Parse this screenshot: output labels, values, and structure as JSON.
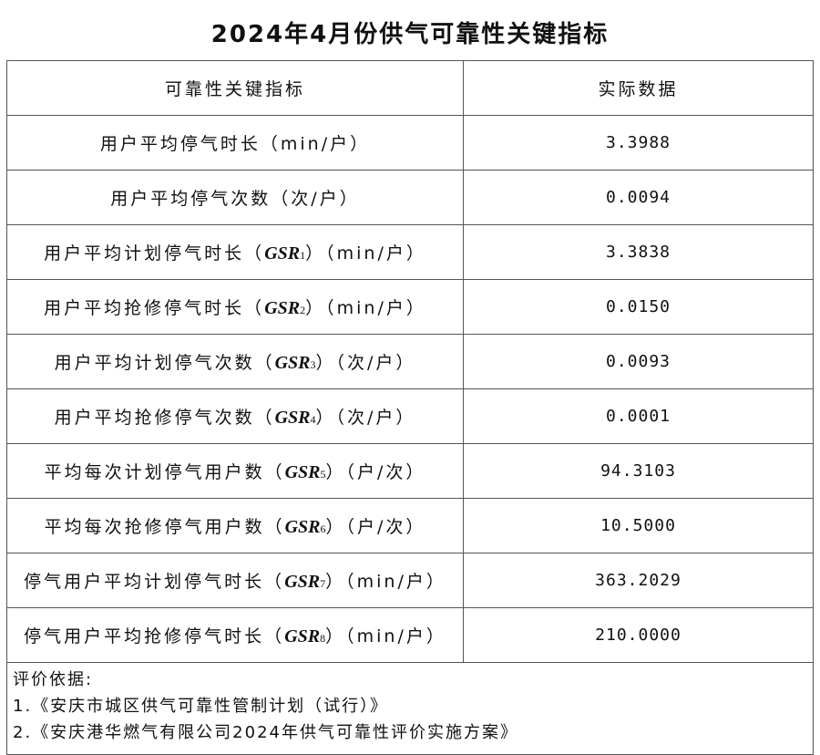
{
  "title": "2024年4月份供气可靠性关键指标",
  "headers": [
    "可靠性关键指标",
    "实际数据"
  ],
  "rows": [
    {
      "label": "用户平均停气时长",
      "gsr": "",
      "sub": "",
      "unit": "（min/户）",
      "value": "3.3988"
    },
    {
      "label": "用户平均停气次数",
      "gsr": "",
      "sub": "",
      "unit": "（次/户）",
      "value": "0.0094"
    },
    {
      "label": "用户平均计划停气时长",
      "gsr": "GSR",
      "sub": "1",
      "unit": "（min/户）",
      "value": "3.3838"
    },
    {
      "label": "用户平均抢修停气时长",
      "gsr": "GSR",
      "sub": "2",
      "unit": "（min/户）",
      "value": "0.0150"
    },
    {
      "label": "用户平均计划停气次数",
      "gsr": "GSR",
      "sub": "3",
      "unit": "（次/户）",
      "value": "0.0093"
    },
    {
      "label": "用户平均抢修停气次数",
      "gsr": "GSR",
      "sub": "4",
      "unit": "（次/户）",
      "value": "0.0001"
    },
    {
      "label": "平均每次计划停气用户数",
      "gsr": "GSR",
      "sub": "5",
      "unit": "（户/次）",
      "value": "94.3103"
    },
    {
      "label": "平均每次抢修停气用户数",
      "gsr": "GSR",
      "sub": "6",
      "unit": "（户/次）",
      "value": "10.5000"
    },
    {
      "label": "停气用户平均计划停气时长",
      "gsr": "GSR",
      "sub": "7",
      "unit": "（min/户）",
      "value": "363.2029"
    },
    {
      "label": "停气用户平均抢修停气时长",
      "gsr": "GSR",
      "sub": "8",
      "unit": "（min/户）",
      "value": "210.0000"
    }
  ],
  "footer": {
    "heading": "评价依据:",
    "items": [
      "1.《安庆市城区供气可靠性管制计划（试行）》",
      "2.《安庆港华燃气有限公司2024年供气可靠性评价实施方案》"
    ]
  }
}
